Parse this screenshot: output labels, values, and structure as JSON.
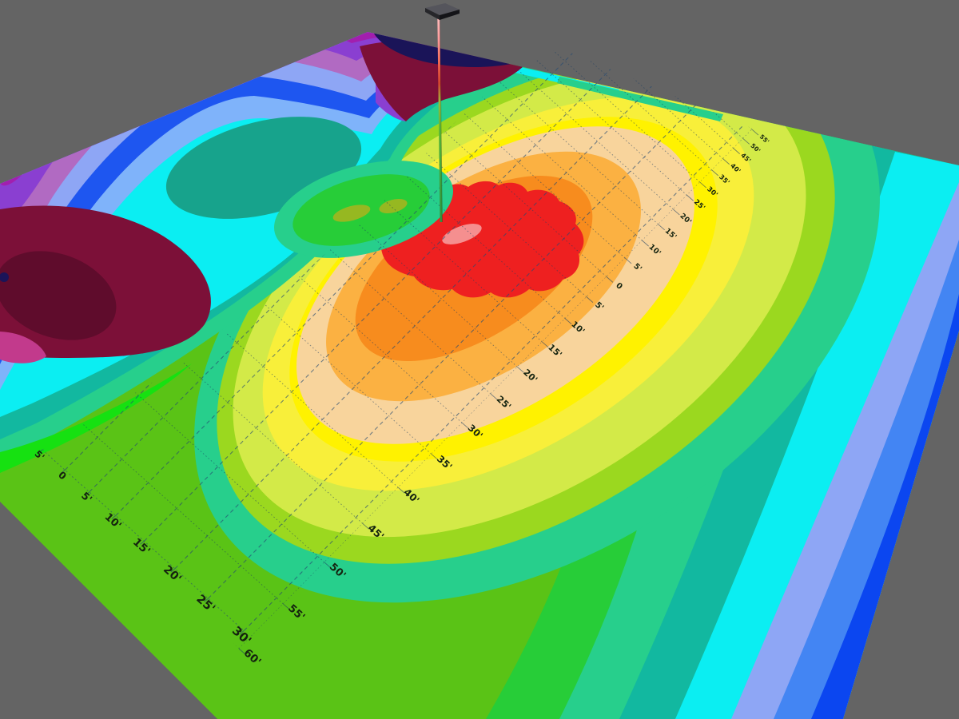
{
  "scene": {
    "description": "3D perspective contour surface of a golf putting green with flagstick",
    "background_color": "#646464"
  },
  "palette": {
    "background": "#646464",
    "base_green": "#5ac316",
    "bright_green": "#16e111",
    "kelly_green": "#27cd38",
    "sea_green": "#27cf8c",
    "teal": "#12b8a0",
    "teal_core": "#17a38c",
    "cyan": "#0beef2",
    "light_blue": "#7fb3fa",
    "periwinkle": "#8ea6f5",
    "cornflower": "#4385f3",
    "blue": "#0b46f0",
    "royal_blue": "#1e56f0",
    "mauve": "#b16ac2",
    "violet": "#8a3fd1",
    "magenta_purple": "#a21fae",
    "pink_magenta": "#c23a8c",
    "maroon": "#7c1038",
    "crimson": "#5f0c2c",
    "navy": "#1a1458",
    "olive_spot": "#96b821",
    "yellow_green": "#9bd81f",
    "lime": "#d3ea48",
    "yellow": "#f8ef3a",
    "yellow_core": "#fff200",
    "peach": "#f8d49c",
    "light_orange": "#fbb142",
    "orange": "#f78c1e",
    "red": "#ee2020",
    "pink_spot": "#f58f8f",
    "grid_row_line": "#1c3e63",
    "grid_col_line": "#274b72",
    "label_color": "#14230f",
    "flag_top": "#55555c",
    "flag_front": "#26262a",
    "flag_side": "#141418",
    "pole_top": "#ffc2c2",
    "pole_pink": "#ff9c9c",
    "pole_red": "#d4452e",
    "pole_green": "#3da23c",
    "pole_green_dark": "#2e9440"
  },
  "axes": {
    "unit": "feet",
    "near_edge_ticks": [
      "5'",
      "0",
      "5'",
      "10'",
      "15'",
      "20'",
      "25'",
      "30'"
    ],
    "diagonal_ticks": [
      "60'",
      "55'",
      "50'",
      "45'",
      "40'",
      "35'",
      "30'",
      "25'",
      "20'",
      "15'",
      "10'",
      "5'",
      "0",
      "5'",
      "10'",
      "15'",
      "20'",
      "25'",
      "30'",
      "35'",
      "40'",
      "45'",
      "50'",
      "55'"
    ]
  },
  "flag": {
    "present": true,
    "location": "grid origin near red high region"
  },
  "chart_data": {
    "type": "heatmap",
    "subtype": "3d-contour-surface",
    "title": "",
    "x_tick_labels": [
      "5'",
      "0",
      "5'",
      "10'",
      "15'",
      "20'",
      "25'",
      "30'"
    ],
    "y_tick_labels": [
      "60'",
      "55'",
      "50'",
      "45'",
      "40'",
      "35'",
      "30'",
      "25'",
      "20'",
      "15'",
      "10'",
      "5'",
      "0",
      "5'",
      "10'",
      "15'",
      "20'",
      "25'",
      "30'",
      "35'",
      "40'",
      "45'",
      "50'",
      "55'"
    ],
    "tick_interval_feet": 5,
    "grid": "on",
    "legend": "none",
    "color_ramp_high_to_low": [
      "red",
      "orange",
      "light_orange",
      "peach",
      "yellow",
      "lime",
      "yellow_green",
      "base_green",
      "bright_green",
      "kelly_green",
      "sea_green",
      "teal",
      "cyan",
      "light_blue",
      "periwinkle",
      "cornflower",
      "blue",
      "mauve",
      "violet",
      "magenta_purple",
      "pink_magenta",
      "maroon",
      "crimson",
      "navy"
    ],
    "annotations": [
      "flagstick with dark flag at top marks the hole near tick 0 of both axes",
      "red/orange high mound at center-right under the flag",
      "teal-cored cyan basin and purple/maroon hill in upper-left terrain",
      "elevation falls to blue bands at the right corner of the surface"
    ]
  }
}
